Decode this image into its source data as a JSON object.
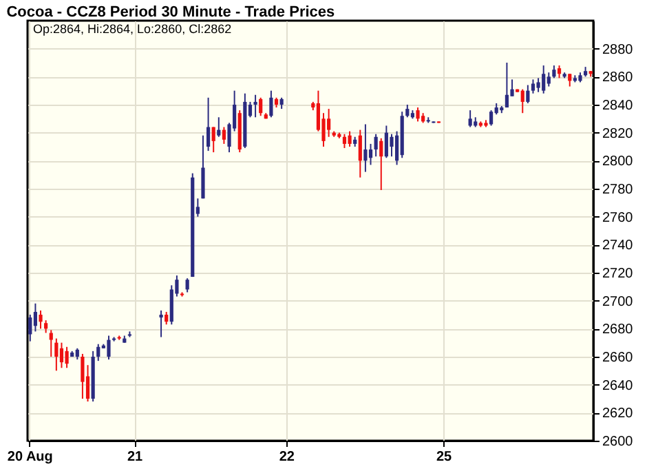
{
  "chart_data": {
    "type": "candlestick",
    "title": "Cocoa - CCZ8 Period 30 Minute - Trade Prices",
    "annotations": [
      "Op:2864, Hi:2864, Lo:2860, Cl:2862"
    ],
    "categories": [
      "20 Aug",
      null,
      null,
      null,
      null,
      null,
      null,
      null,
      null,
      null,
      null,
      null,
      null,
      null,
      null,
      null,
      null,
      null,
      null,
      null,
      "21",
      null,
      null,
      null,
      null,
      null,
      null,
      null,
      null,
      null,
      null,
      null,
      null,
      null,
      null,
      null,
      null,
      null,
      null,
      null,
      null,
      null,
      null,
      null,
      null,
      null,
      null,
      null,
      null,
      "22",
      null,
      null,
      null,
      null,
      null,
      null,
      null,
      null,
      null,
      null,
      null,
      null,
      null,
      null,
      null,
      null,
      null,
      null,
      null,
      null,
      null,
      null,
      null,
      null,
      null,
      null,
      null,
      null,
      null,
      "25",
      null,
      null,
      null,
      null,
      null,
      null,
      null,
      null,
      null,
      null,
      null,
      null,
      null,
      null,
      null,
      null,
      null,
      null,
      null,
      null,
      null,
      null,
      null,
      null,
      null,
      null,
      null,
      null
    ],
    "ohlc": [
      [
        2676,
        2690,
        2671,
        2688
      ],
      [
        2682,
        2698,
        2678,
        2692
      ],
      [
        2690,
        2693,
        2680,
        2685
      ],
      [
        2684,
        2686,
        2677,
        2680
      ],
      [
        2677,
        2679,
        2660,
        2672
      ],
      [
        2670,
        2673,
        2650,
        2660
      ],
      [
        2666,
        2670,
        2652,
        2656
      ],
      [
        2664,
        2667,
        2652,
        2655
      ],
      [
        2660,
        2664,
        2660,
        2663
      ],
      [
        2660,
        2666,
        2658,
        2665
      ],
      [
        2660,
        2662,
        2630,
        2642
      ],
      [
        2646,
        2654,
        2628,
        2630
      ],
      [
        2630,
        2664,
        2628,
        2660
      ],
      [
        2660,
        2669,
        2657,
        2667
      ],
      [
        2666,
        2669,
        2666,
        2668
      ],
      [
        2660,
        2675,
        2658,
        2672
      ],
      [
        2672,
        2674,
        2671,
        2673
      ],
      [
        2674,
        2675,
        2672,
        2673
      ],
      [
        2670,
        2675,
        2670,
        2673
      ],
      [
        2675,
        2678,
        2674,
        2676
      ],
      null,
      null,
      null,
      null,
      null,
      [
        2688,
        2693,
        2674,
        2690
      ],
      [
        2690,
        2692,
        2683,
        2685
      ],
      [
        2685,
        2711,
        2683,
        2708
      ],
      [
        2705,
        2718,
        2703,
        2715
      ],
      [
        2705,
        2706,
        2703,
        2704
      ],
      [
        2708,
        2716,
        2706,
        2715
      ],
      [
        2717,
        2791,
        2717,
        2788
      ],
      [
        2762,
        2773,
        2760,
        2767
      ],
      [
        2773,
        2818,
        2773,
        2795
      ],
      [
        2810,
        2845,
        2807,
        2824
      ],
      [
        2824,
        2824,
        2806,
        2814
      ],
      [
        2818,
        2831,
        2817,
        2822
      ],
      [
        2822,
        2824,
        2812,
        2815
      ],
      [
        2810,
        2827,
        2806,
        2826
      ],
      [
        2823,
        2850,
        2821,
        2840
      ],
      [
        2834,
        2836,
        2806,
        2808
      ],
      [
        2810,
        2848,
        2809,
        2842
      ],
      [
        2832,
        2842,
        2831,
        2840
      ],
      [
        2840,
        2847,
        2831,
        2842
      ],
      [
        2844,
        2845,
        2832,
        2834
      ],
      [
        2833,
        2834,
        2830,
        2830
      ],
      [
        2832,
        2850,
        2831,
        2845
      ],
      [
        2844,
        2845,
        2838,
        2840
      ],
      [
        2840,
        2845,
        2837,
        2844
      ],
      null,
      null,
      null,
      null,
      null,
      [
        2841,
        2842,
        2836,
        2838
      ],
      [
        2841,
        2850,
        2821,
        2822
      ],
      [
        2830,
        2834,
        2810,
        2814
      ],
      [
        2830,
        2837,
        2817,
        2822
      ],
      [
        2820,
        2821,
        2817,
        2818
      ],
      [
        2819,
        2820,
        2816,
        2817
      ],
      [
        2817,
        2819,
        2809,
        2812
      ],
      [
        2818,
        2821,
        2810,
        2812
      ],
      [
        2812,
        2817,
        2810,
        2815
      ],
      [
        2818,
        2822,
        2788,
        2800
      ],
      [
        2800,
        2826,
        2792,
        2808
      ],
      [
        2802,
        2812,
        2797,
        2808
      ],
      [
        2808,
        2819,
        2803,
        2817
      ],
      [
        2814,
        2816,
        2779,
        2803
      ],
      [
        2803,
        2825,
        2802,
        2820
      ],
      [
        2810,
        2819,
        2803,
        2817
      ],
      [
        2800,
        2821,
        2797,
        2818
      ],
      [
        2804,
        2835,
        2802,
        2832
      ],
      [
        2832,
        2840,
        2831,
        2837
      ],
      [
        2831,
        2836,
        2830,
        2834
      ],
      [
        2836,
        2838,
        2828,
        2830
      ],
      [
        2832,
        2834,
        2827,
        2828
      ],
      [
        2828,
        2831,
        2827,
        2829
      ],
      [
        2827,
        2828,
        2827,
        2828
      ],
      [
        2828,
        2828,
        2827,
        2827
      ],
      null,
      null,
      null,
      null,
      null,
      [
        2825,
        2836,
        2824,
        2830
      ],
      [
        2825,
        2831,
        2824,
        2828
      ],
      [
        2827,
        2828,
        2824,
        2825
      ],
      [
        2827,
        2829,
        2824,
        2825
      ],
      [
        2826,
        2836,
        2825,
        2835
      ],
      [
        2834,
        2841,
        2833,
        2838
      ],
      [
        2836,
        2839,
        2834,
        2838
      ],
      [
        2838,
        2870,
        2838,
        2847
      ],
      [
        2846,
        2858,
        2846,
        2851
      ],
      [
        2851,
        2851,
        2849,
        2849
      ],
      [
        2850,
        2851,
        2834,
        2842
      ],
      [
        2842,
        2854,
        2841,
        2850
      ],
      [
        2850,
        2858,
        2848,
        2855
      ],
      [
        2852,
        2859,
        2849,
        2856
      ],
      [
        2850,
        2868,
        2848,
        2862
      ],
      [
        2855,
        2863,
        2853,
        2860
      ],
      [
        2860,
        2868,
        2859,
        2865
      ],
      [
        2866,
        2868,
        2859,
        2862
      ],
      [
        2860,
        2863,
        2859,
        2862
      ],
      [
        2862,
        2862,
        2853,
        2857
      ],
      [
        2857,
        2861,
        2856,
        2859
      ],
      [
        2857,
        2863,
        2856,
        2861
      ],
      [
        2861,
        2867,
        2860,
        2864
      ],
      [
        2864,
        2864,
        2860,
        2862
      ]
    ],
    "colors": [
      "#2b2b80",
      "#2b2b80",
      "#ee1111",
      "#ee1111",
      "#ee1111",
      "#ee1111",
      "#ee1111",
      "#ee1111",
      "#2b2b80",
      "#2b2b80",
      "#ee1111",
      "#ee1111",
      "#2b2b80",
      "#2b2b80",
      "#2b2b80",
      "#2b2b80",
      "#2b2b80",
      "#ee1111",
      "#2b2b80",
      "#2b2b80",
      null,
      null,
      null,
      null,
      null,
      "#2b2b80",
      "#ee1111",
      "#2b2b80",
      "#2b2b80",
      "#ee1111",
      "#2b2b80",
      "#2b2b80",
      "#2b2b80",
      "#2b2b80",
      "#2b2b80",
      "#ee1111",
      "#2b2b80",
      "#ee1111",
      "#2b2b80",
      "#2b2b80",
      "#ee1111",
      "#2b2b80",
      "#2b2b80",
      "#2b2b80",
      "#ee1111",
      "#ee1111",
      "#2b2b80",
      "#ee1111",
      "#2b2b80",
      null,
      null,
      null,
      null,
      null,
      "#ee1111",
      "#ee1111",
      "#ee1111",
      "#ee1111",
      "#ee1111",
      "#ee1111",
      "#ee1111",
      "#ee1111",
      "#2b2b80",
      "#ee1111",
      "#2b2b80",
      "#2b2b80",
      "#2b2b80",
      "#ee1111",
      "#2b2b80",
      "#2b2b80",
      "#2b2b80",
      "#2b2b80",
      "#2b2b80",
      "#2b2b80",
      "#ee1111",
      "#ee1111",
      "#2b2b80",
      "#2b2b80",
      "#ee1111",
      null,
      null,
      null,
      null,
      null,
      "#2b2b80",
      "#2b2b80",
      "#ee1111",
      "#ee1111",
      "#2b2b80",
      "#2b2b80",
      "#2b2b80",
      "#2b2b80",
      "#2b2b80",
      "#ee1111",
      "#ee1111",
      "#2b2b80",
      "#2b2b80",
      "#2b2b80",
      "#2b2b80",
      "#2b2b80",
      "#2b2b80",
      "#ee1111",
      "#2b2b80",
      "#ee1111",
      "#2b2b80",
      "#2b2b80",
      "#2b2b80",
      "#ee1111"
    ],
    "ylim": [
      2600,
      2900
    ],
    "yticks": [
      2600,
      2620,
      2640,
      2660,
      2680,
      2700,
      2720,
      2740,
      2760,
      2780,
      2800,
      2820,
      2840,
      2860,
      2880
    ],
    "grid": true
  }
}
